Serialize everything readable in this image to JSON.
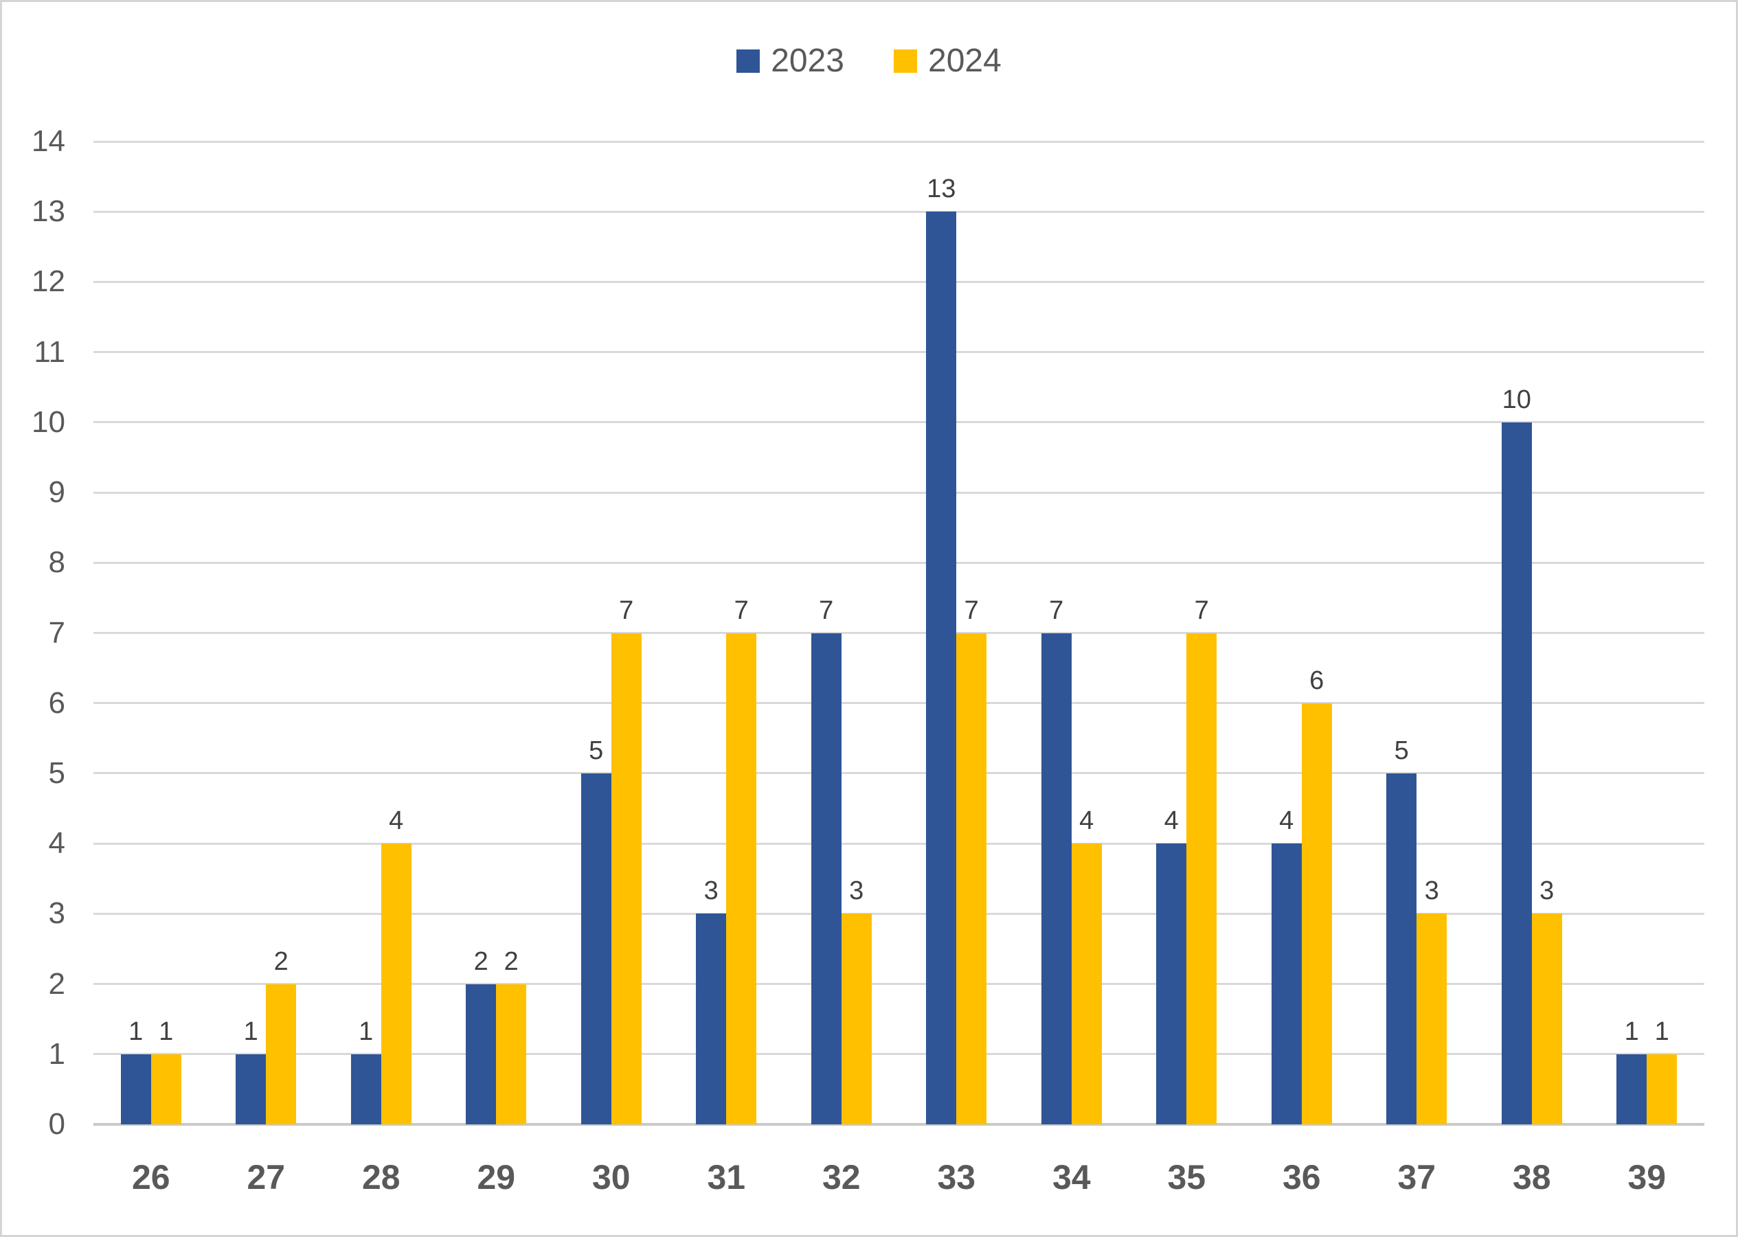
{
  "chart_data": {
    "type": "bar",
    "title": "",
    "xlabel": "",
    "ylabel": "",
    "categories": [
      "26",
      "27",
      "28",
      "29",
      "30",
      "31",
      "32",
      "33",
      "34",
      "35",
      "36",
      "37",
      "38",
      "39"
    ],
    "series": [
      {
        "name": "2023",
        "color": "#2F5597",
        "values": [
          1,
          1,
          1,
          2,
          5,
          3,
          7,
          13,
          7,
          4,
          4,
          5,
          10,
          1
        ]
      },
      {
        "name": "2024",
        "color": "#FFC000",
        "values": [
          1,
          2,
          4,
          2,
          7,
          7,
          3,
          7,
          4,
          7,
          6,
          3,
          3,
          1
        ]
      }
    ],
    "ylim": [
      0,
      14
    ],
    "yticks": [
      0,
      1,
      2,
      3,
      4,
      5,
      6,
      7,
      8,
      9,
      10,
      11,
      12,
      13,
      14
    ],
    "grid": "horizontal",
    "legend_position": "top-center",
    "data_labels": true,
    "colors": {
      "axis_text": "#595959",
      "data_label_text": "#404040",
      "gridline": "#D9D9D9",
      "axis_line": "#C9C9C9",
      "background": "#FFFFFF",
      "border": "#D5D5D5"
    }
  }
}
